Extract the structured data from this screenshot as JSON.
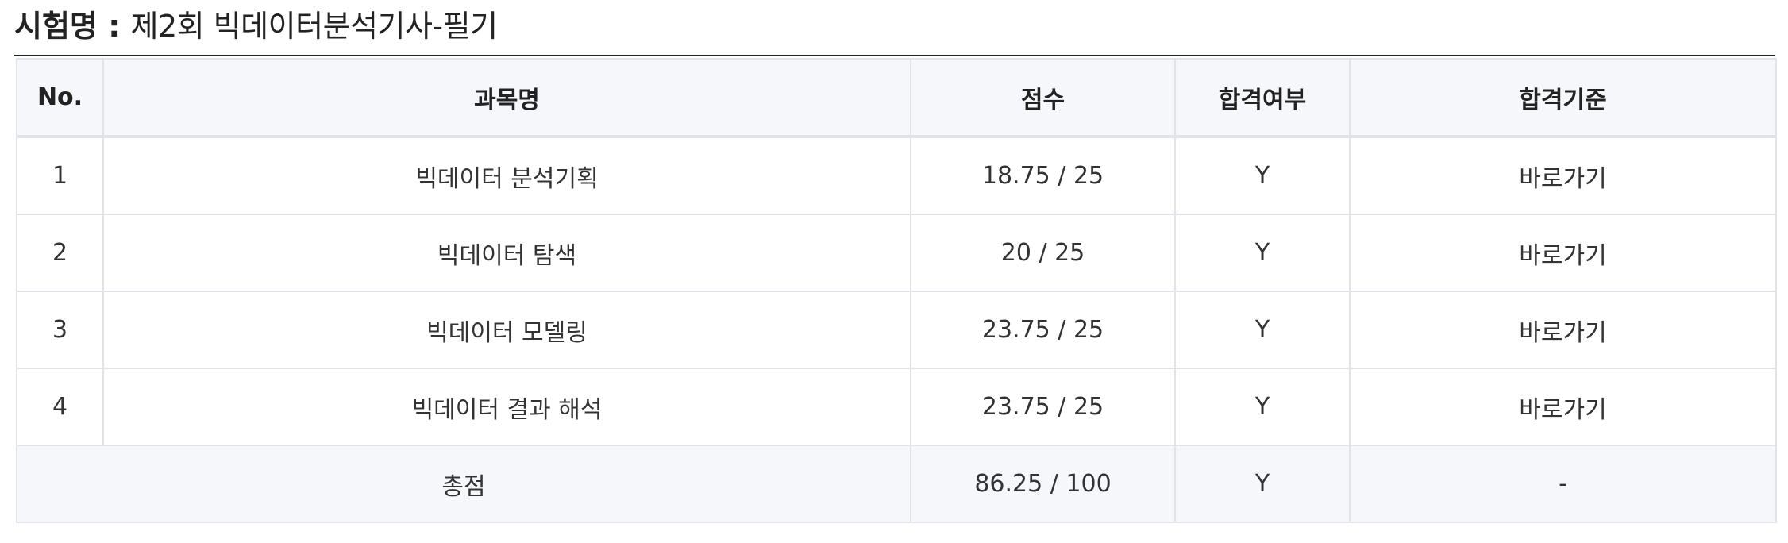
{
  "exam": {
    "label": "시험명",
    "separator": " : ",
    "name": "제2회 빅데이터분석기사-필기"
  },
  "table": {
    "headers": {
      "no": "No.",
      "subject": "과목명",
      "score": "점수",
      "pass": "합격여부",
      "criteria": "합격기준"
    },
    "rows": [
      {
        "no": "1",
        "subject": "빅데이터 분석기획",
        "score": "18.75 / 25",
        "pass": "Y",
        "criteria": "바로가기"
      },
      {
        "no": "2",
        "subject": "빅데이터 탐색",
        "score": "20 / 25",
        "pass": "Y",
        "criteria": "바로가기"
      },
      {
        "no": "3",
        "subject": "빅데이터 모델링",
        "score": "23.75 / 25",
        "pass": "Y",
        "criteria": "바로가기"
      },
      {
        "no": "4",
        "subject": "빅데이터 결과 해석",
        "score": "23.75 / 25",
        "pass": "Y",
        "criteria": "바로가기"
      }
    ],
    "total": {
      "label": "총점",
      "score": "86.25 / 100",
      "pass": "Y",
      "criteria": "-"
    }
  }
}
